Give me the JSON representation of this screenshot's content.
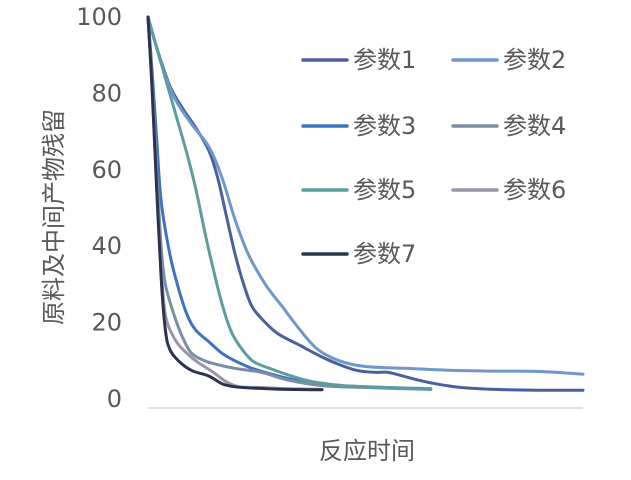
{
  "chart_data": {
    "type": "line",
    "title": "",
    "xlabel": "反应时间",
    "ylabel": "原料及中间产物残留",
    "ylim": [
      0,
      100
    ],
    "yticks": [
      0,
      20,
      40,
      60,
      80,
      100
    ],
    "xlim": [
      0,
      100
    ],
    "x_tick_labels_shown": false,
    "grid": false,
    "legend_position": "right",
    "series": [
      {
        "name": "参数1",
        "color": "#4a5f9d",
        "points": [
          [
            0,
            100
          ],
          [
            2,
            92
          ],
          [
            5,
            82
          ],
          [
            8,
            76
          ],
          [
            11,
            71
          ],
          [
            14,
            65
          ],
          [
            16,
            58
          ],
          [
            18,
            48
          ],
          [
            20,
            38
          ],
          [
            22,
            30
          ],
          [
            24,
            24
          ],
          [
            27,
            20
          ],
          [
            30,
            17
          ],
          [
            35,
            14
          ],
          [
            40,
            11
          ],
          [
            44,
            9
          ],
          [
            48,
            7.5
          ],
          [
            52,
            7
          ],
          [
            55,
            7
          ],
          [
            58,
            6.2
          ],
          [
            62,
            5
          ],
          [
            66,
            4
          ],
          [
            72,
            3
          ],
          [
            80,
            2.5
          ],
          [
            90,
            2.3
          ],
          [
            100,
            2.3
          ]
        ]
      },
      {
        "name": "参数2",
        "color": "#6f97c9",
        "points": [
          [
            0,
            100
          ],
          [
            3,
            88
          ],
          [
            6,
            79
          ],
          [
            10,
            72
          ],
          [
            14,
            66
          ],
          [
            17,
            58
          ],
          [
            20,
            47
          ],
          [
            23,
            38
          ],
          [
            27,
            30
          ],
          [
            31,
            24
          ],
          [
            35,
            18
          ],
          [
            39,
            13
          ],
          [
            44,
            10
          ],
          [
            50,
            8.5
          ],
          [
            60,
            8
          ],
          [
            70,
            7.5
          ],
          [
            80,
            7.3
          ],
          [
            90,
            7.2
          ],
          [
            100,
            6.5
          ]
        ]
      },
      {
        "name": "参数3",
        "color": "#3f73bd",
        "points": [
          [
            0,
            100
          ],
          [
            1,
            85
          ],
          [
            2,
            68
          ],
          [
            3,
            52
          ],
          [
            5,
            38
          ],
          [
            7,
            29
          ],
          [
            9,
            22
          ],
          [
            11,
            18
          ],
          [
            14,
            15
          ],
          [
            17,
            12
          ],
          [
            20,
            10
          ],
          [
            24,
            8
          ],
          [
            30,
            6
          ],
          [
            36,
            4.5
          ],
          [
            44,
            3.5
          ],
          [
            55,
            3
          ],
          [
            65,
            2.7
          ]
        ]
      },
      {
        "name": "参数4",
        "color": "#7c8da6",
        "points": [
          [
            0,
            100
          ],
          [
            1,
            82
          ],
          [
            2,
            60
          ],
          [
            3,
            40
          ],
          [
            4,
            30
          ],
          [
            6,
            22
          ],
          [
            8,
            16
          ],
          [
            10,
            12
          ],
          [
            13,
            10
          ],
          [
            16,
            9
          ],
          [
            20,
            8
          ],
          [
            26,
            7
          ],
          [
            32,
            5
          ],
          [
            40,
            3.5
          ],
          [
            50,
            3
          ],
          [
            65,
            2.5
          ]
        ]
      },
      {
        "name": "参数5",
        "color": "#5c9da0",
        "points": [
          [
            0,
            100
          ],
          [
            3,
            88
          ],
          [
            6,
            76
          ],
          [
            9,
            64
          ],
          [
            11,
            55
          ],
          [
            13,
            44
          ],
          [
            15,
            34
          ],
          [
            17,
            25
          ],
          [
            19,
            18
          ],
          [
            21,
            14
          ],
          [
            24,
            10
          ],
          [
            28,
            8
          ],
          [
            33,
            6
          ],
          [
            38,
            4.5
          ],
          [
            45,
            3.5
          ],
          [
            55,
            3
          ],
          [
            65,
            2.5
          ]
        ]
      },
      {
        "name": "参数6",
        "color": "#9c95a6",
        "points": [
          [
            0,
            100
          ],
          [
            1,
            80
          ],
          [
            2,
            55
          ],
          [
            3,
            35
          ],
          [
            4,
            22
          ],
          [
            6,
            16
          ],
          [
            8,
            13
          ],
          [
            11,
            10
          ],
          [
            15,
            7
          ],
          [
            18,
            4.5
          ],
          [
            21,
            3.2
          ],
          [
            26,
            3
          ],
          [
            32,
            2.7
          ],
          [
            40,
            2.5
          ]
        ]
      },
      {
        "name": "参数7",
        "color": "#2c3350",
        "points": [
          [
            0,
            100
          ],
          [
            1,
            80
          ],
          [
            2,
            55
          ],
          [
            3,
            32
          ],
          [
            4,
            18
          ],
          [
            5,
            13
          ],
          [
            7,
            10
          ],
          [
            10,
            7.5
          ],
          [
            14,
            6
          ],
          [
            17,
            4
          ],
          [
            20,
            3.2
          ],
          [
            25,
            2.8
          ],
          [
            32,
            2.5
          ],
          [
            40,
            2.4
          ]
        ]
      }
    ]
  }
}
